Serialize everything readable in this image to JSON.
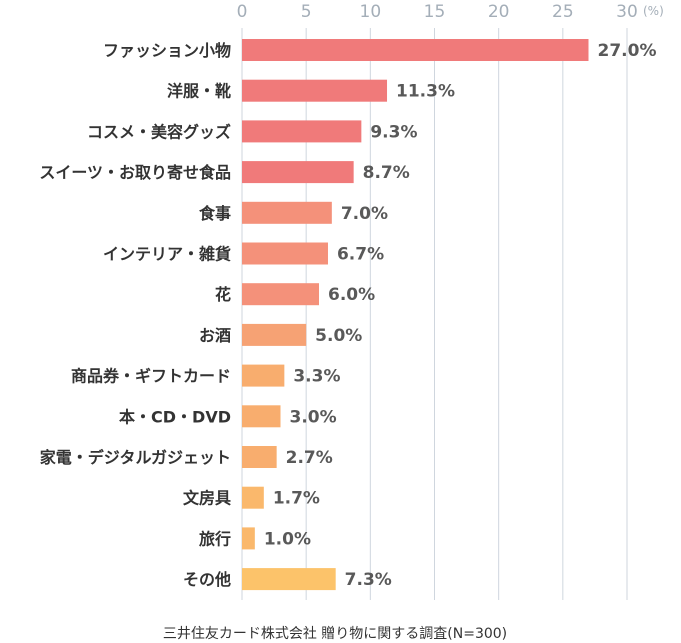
{
  "chart_data": {
    "type": "bar",
    "orientation": "horizontal",
    "categories": [
      "ファッション小物",
      "洋服・靴",
      "コスメ・美容グッズ",
      "スイーツ・お取り寄せ食品",
      "食事",
      "インテリア・雑貨",
      "花",
      "お酒",
      "商品券・ギフトカード",
      "本・CD・DVD",
      "家電・デジタルガジェット",
      "文房具",
      "旅行",
      "その他"
    ],
    "values": [
      27.0,
      11.3,
      9.3,
      8.7,
      7.0,
      6.7,
      6.0,
      5.0,
      3.3,
      3.0,
      2.7,
      1.7,
      1.0,
      7.3
    ],
    "value_labels": [
      "27.0%",
      "11.3%",
      "9.3%",
      "8.7%",
      "7.0%",
      "6.7%",
      "6.0%",
      "5.0%",
      "3.3%",
      "3.0%",
      "2.7%",
      "1.7%",
      "1.0%",
      "7.3%"
    ],
    "bar_colors": [
      "#f07a7a",
      "#f07a7a",
      "#f07a7a",
      "#f07a7a",
      "#f4917a",
      "#f4917a",
      "#f4917a",
      "#f6a274",
      "#f8ad6e",
      "#f8ad6e",
      "#f8ad6e",
      "#fab86c",
      "#fab86c",
      "#fcc36a"
    ],
    "xlim": [
      0,
      30
    ],
    "x_ticks": [
      "0",
      "5",
      "10",
      "15",
      "20",
      "25",
      "30"
    ],
    "x_unit": "(%)",
    "x_axis_position": "top",
    "grid": true,
    "grid_color": "#cfd6de",
    "title": "",
    "xlabel": "",
    "ylabel": ""
  },
  "source_note": "三井住友カード株式会社 贈り物に関する調査(N=300)"
}
